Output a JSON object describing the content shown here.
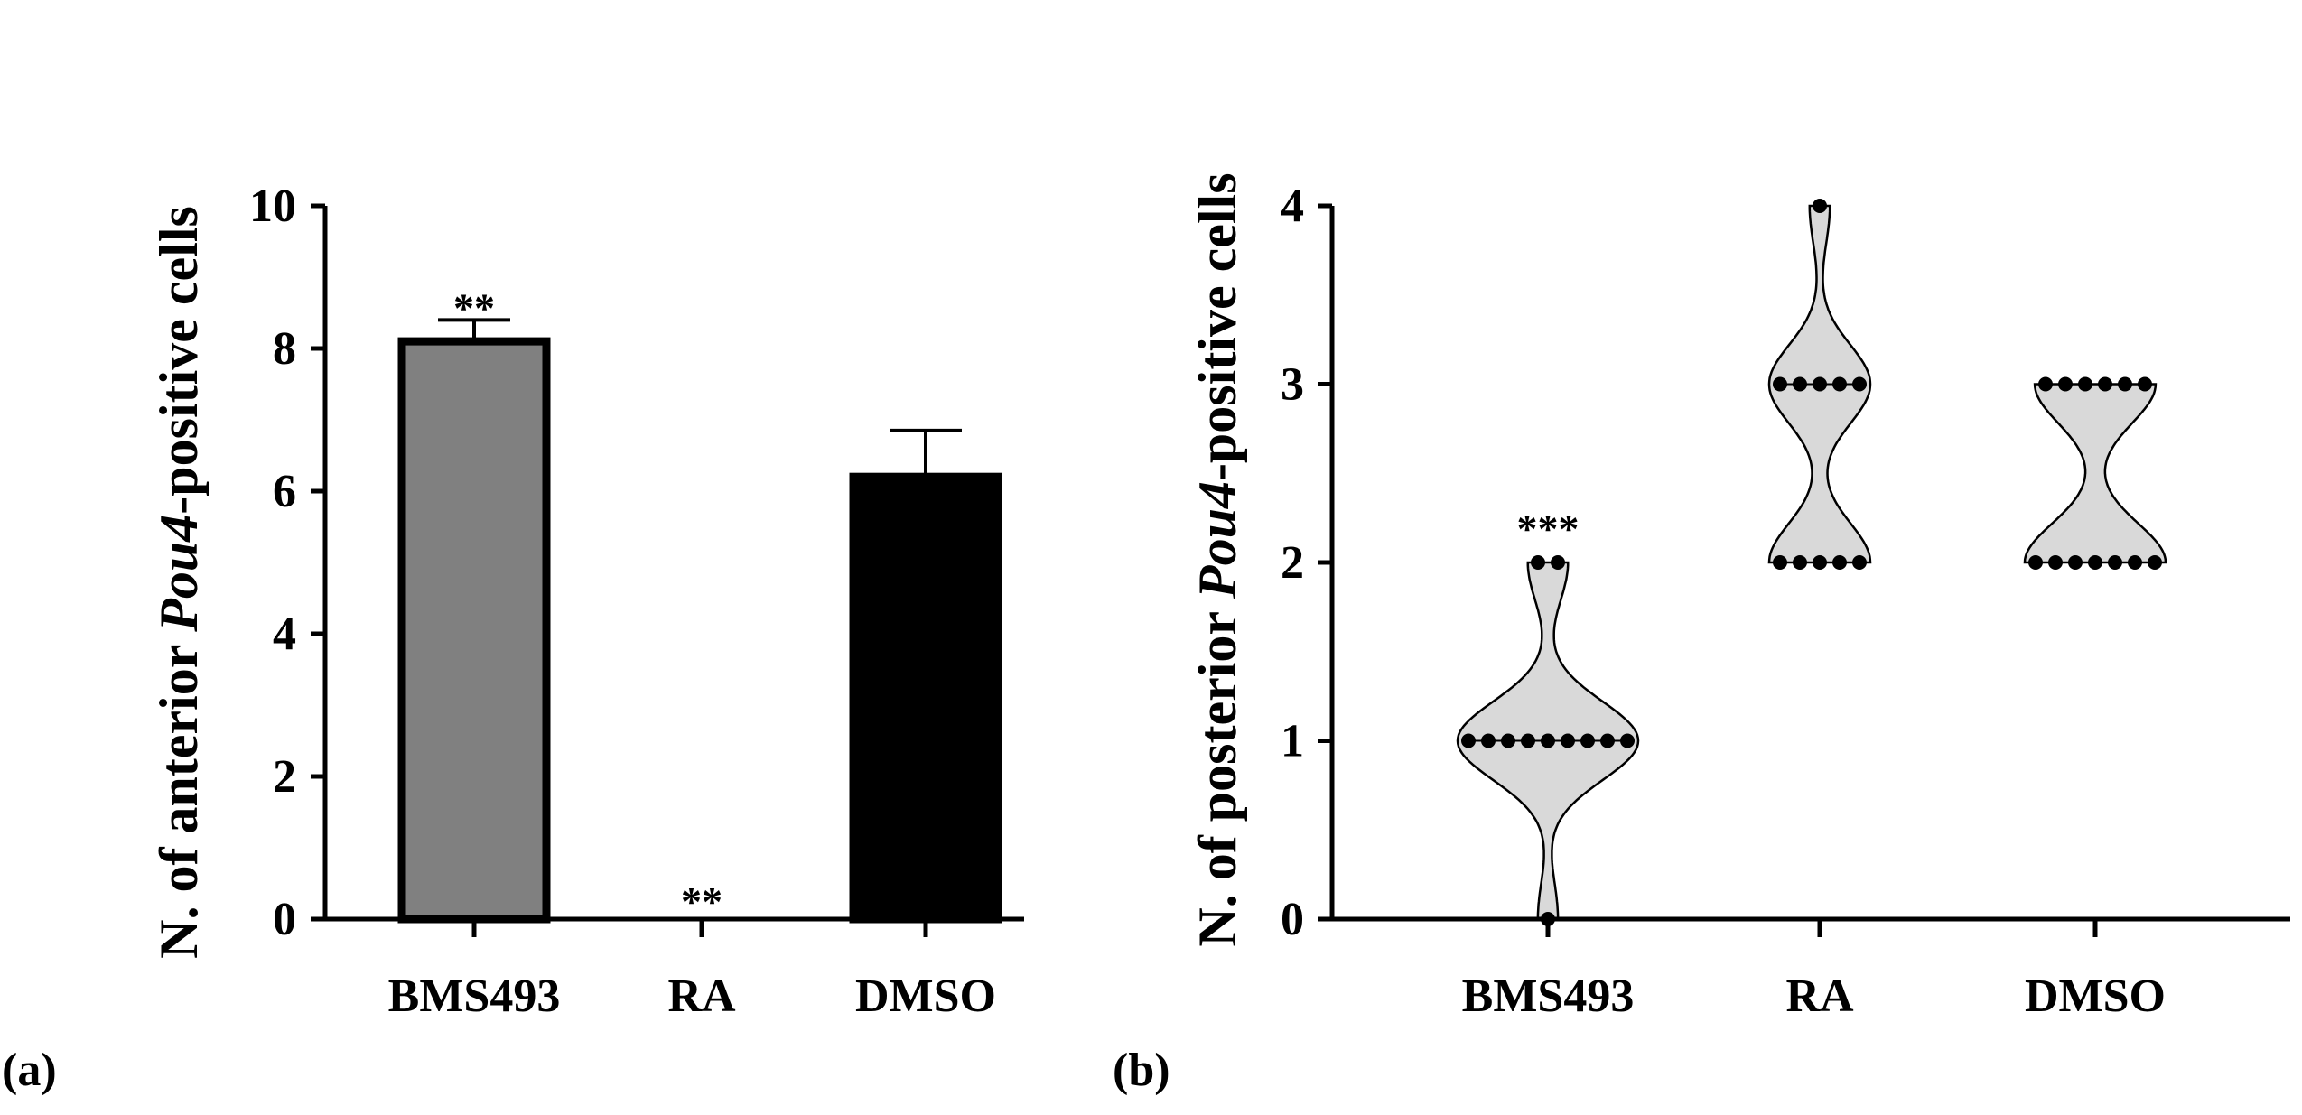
{
  "chart_data": [
    {
      "type": "bar",
      "panel_label": "(a)",
      "ylabel_parts": [
        "N. of anterior ",
        "Pou4",
        "-positive cells"
      ],
      "categories": [
        "BMS493",
        "RA",
        "DMSO"
      ],
      "values": [
        8.1,
        0,
        6.2
      ],
      "errors": [
        0.3,
        0,
        0.65
      ],
      "significance": [
        "**",
        "**",
        ""
      ],
      "ylim": [
        0,
        10
      ],
      "yticks": [
        "0",
        "2",
        "4",
        "6",
        "8",
        "10"
      ],
      "colors": [
        "#808080",
        "#808080",
        "#000000"
      ],
      "edge_color": "#000000"
    },
    {
      "type": "violin",
      "panel_label": "(b)",
      "ylabel_parts": [
        "N. of posterior ",
        "Pou4",
        "-positive cells"
      ],
      "categories": [
        "BMS493",
        "RA",
        "DMSO"
      ],
      "significance": [
        "***",
        "",
        ""
      ],
      "ylim": [
        0,
        4
      ],
      "yticks": [
        "0",
        "1",
        "2",
        "3",
        "4"
      ],
      "fill_color": "#d9d9d9",
      "groups": [
        {
          "name": "BMS493",
          "points": [
            0,
            1,
            1,
            1,
            1,
            1,
            1,
            1,
            1,
            1,
            2,
            2
          ]
        },
        {
          "name": "RA",
          "points": [
            2,
            2,
            2,
            2,
            2,
            3,
            3,
            3,
            3,
            3,
            4
          ]
        },
        {
          "name": "DMSO",
          "points": [
            2,
            2,
            2,
            2,
            2,
            2,
            2,
            3,
            3,
            3,
            3,
            3,
            3
          ]
        }
      ]
    }
  ]
}
